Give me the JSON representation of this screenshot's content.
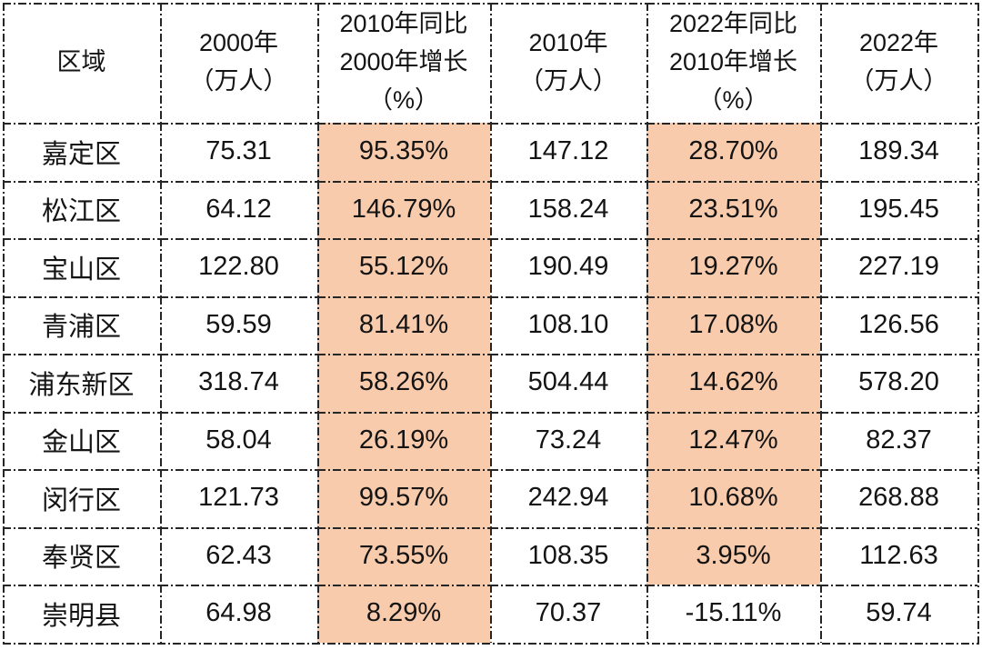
{
  "colors": {
    "highlight": "#f8cbad",
    "border": "#262626",
    "text": "#141414",
    "table_bg": "#ffffff"
  },
  "table": {
    "headers": [
      {
        "text": "区域"
      },
      {
        "text": "2000年\n（万人）"
      },
      {
        "text": "2010年同比\n2000年增长\n（%）"
      },
      {
        "text": "2010年\n（万人）"
      },
      {
        "text": "2022年同比\n2010年增长\n（%）"
      },
      {
        "text": "2022年\n（万人）"
      }
    ],
    "rows": [
      {
        "region": "嘉定区",
        "pop2000": "75.31",
        "growth2010": "95.35%",
        "pop2010": "147.12",
        "growth2022": "28.70%",
        "pop2022": "189.34"
      },
      {
        "region": "松江区",
        "pop2000": "64.12",
        "growth2010": "146.79%",
        "pop2010": "158.24",
        "growth2022": "23.51%",
        "pop2022": "195.45"
      },
      {
        "region": "宝山区",
        "pop2000": "122.80",
        "growth2010": "55.12%",
        "pop2010": "190.49",
        "growth2022": "19.27%",
        "pop2022": "227.19"
      },
      {
        "region": "青浦区",
        "pop2000": "59.59",
        "growth2010": "81.41%",
        "pop2010": "108.10",
        "growth2022": "17.08%",
        "pop2022": "126.56"
      },
      {
        "region": "浦东新区",
        "pop2000": "318.74",
        "growth2010": "58.26%",
        "pop2010": "504.44",
        "growth2022": "14.62%",
        "pop2022": "578.20"
      },
      {
        "region": "金山区",
        "pop2000": "58.04",
        "growth2010": "26.19%",
        "pop2010": "73.24",
        "growth2022": "12.47%",
        "pop2022": "82.37"
      },
      {
        "region": "闵行区",
        "pop2000": "121.73",
        "growth2010": "99.57%",
        "pop2010": "242.94",
        "growth2022": "10.68%",
        "pop2022": "268.88"
      },
      {
        "region": "奉贤区",
        "pop2000": "62.43",
        "growth2010": "73.55%",
        "pop2010": "108.35",
        "growth2022": "3.95%",
        "pop2022": "112.63"
      },
      {
        "region": "崇明县",
        "pop2000": "64.98",
        "growth2010": "8.29%",
        "pop2010": "70.37",
        "growth2022": "-15.11%",
        "pop2022": "59.74"
      }
    ]
  },
  "chart_data": {
    "type": "table",
    "title": "",
    "columns": [
      "区域",
      "2000年（万人）",
      "2010年同比2000年增长（%）",
      "2010年（万人）",
      "2022年同比2010年增长（%）",
      "2022年（万人）"
    ],
    "rows": [
      [
        "嘉定区",
        75.31,
        "95.35%",
        147.12,
        "28.70%",
        189.34
      ],
      [
        "松江区",
        64.12,
        "146.79%",
        158.24,
        "23.51%",
        195.45
      ],
      [
        "宝山区",
        122.8,
        "55.12%",
        190.49,
        "19.27%",
        227.19
      ],
      [
        "青浦区",
        59.59,
        "81.41%",
        108.1,
        "17.08%",
        126.56
      ],
      [
        "浦东新区",
        318.74,
        "58.26%",
        504.44,
        "14.62%",
        578.2
      ],
      [
        "金山区",
        58.04,
        "26.19%",
        73.24,
        "12.47%",
        82.37
      ],
      [
        "闵行区",
        121.73,
        "99.57%",
        242.94,
        "10.68%",
        268.88
      ],
      [
        "奉贤区",
        62.43,
        "73.55%",
        108.35,
        "3.95%",
        112.63
      ],
      [
        "崇明县",
        64.98,
        "8.29%",
        70.37,
        "-15.11%",
        59.74
      ]
    ],
    "highlighted_columns": [
      "2010年同比2000年增长（%）",
      "2022年同比2010年增长（%）"
    ],
    "unhighlighted_cells": [
      {
        "row": "崇明县",
        "column": "2022年同比2010年增长（%）"
      }
    ],
    "highlight_color": "#f8cbad",
    "layout": {
      "grid": "dash-dot borders",
      "legend": "none"
    }
  }
}
